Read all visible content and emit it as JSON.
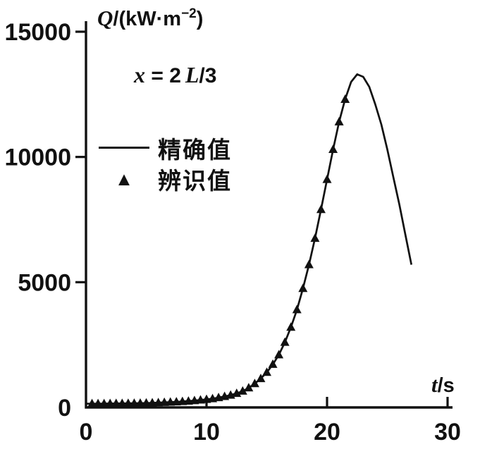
{
  "figure": {
    "ink": "#111111",
    "y_axis_title": {
      "sym": "Q",
      "mid": "/(kW·m",
      "sup": "−2",
      "close": ")"
    },
    "x_axis_title": {
      "sym": "t",
      "rest": "/s"
    },
    "annotation": {
      "sym1": "x",
      "mid": " = 2",
      "sym2": "L",
      "rest": "/3"
    },
    "legend": {
      "exact": "精确值",
      "identified": "辨识值",
      "triangle_glyph": "▲"
    }
  },
  "chart_data": {
    "type": "line",
    "title": "",
    "xlabel": "t/s",
    "ylabel": "Q/(kW·m⁻²)",
    "annotation": "x = 2L/3",
    "xlim": [
      0,
      30
    ],
    "ylim": [
      0,
      15000
    ],
    "x_ticks": [
      0,
      10,
      20,
      30
    ],
    "y_ticks": [
      0,
      5000,
      10000,
      15000
    ],
    "grid": false,
    "legend_position": "upper-left-inside",
    "series": [
      {
        "name": "精确值",
        "type": "line",
        "x": [
          0,
          1,
          2,
          3,
          4,
          5,
          6,
          7,
          8,
          9,
          10,
          10.5,
          11,
          11.5,
          12,
          12.5,
          13,
          13.5,
          14,
          14.5,
          15,
          15.5,
          16,
          16.5,
          17,
          17.5,
          18,
          18.5,
          19,
          19.5,
          20,
          20.5,
          21,
          21.5,
          22,
          22.5,
          23,
          23.5,
          24,
          24.5,
          25,
          25.5,
          26,
          26.5,
          27
        ],
        "y": [
          150,
          150,
          155,
          160,
          165,
          175,
          190,
          210,
          235,
          270,
          320,
          350,
          390,
          435,
          490,
          560,
          650,
          780,
          950,
          1150,
          1400,
          1720,
          2100,
          2600,
          3200,
          3900,
          4750,
          5700,
          6750,
          7900,
          9100,
          10300,
          11400,
          12300,
          13000,
          13300,
          13200,
          12800,
          12100,
          11300,
          10300,
          9200,
          8100,
          6900,
          5700
        ]
      },
      {
        "name": "辨识值",
        "type": "scatter",
        "marker": "triangle",
        "x": [
          0.5,
          1,
          1.5,
          2,
          2.5,
          3,
          3.5,
          4,
          4.5,
          5,
          5.5,
          6,
          6.5,
          7,
          7.5,
          8,
          8.5,
          9,
          9.5,
          10,
          10.5,
          11,
          11.5,
          12,
          12.5,
          13,
          13.5,
          14,
          14.5,
          15,
          15.5,
          16,
          16.5,
          17,
          17.5,
          18,
          18.5,
          19,
          19.5,
          20,
          20.5,
          21,
          21.5
        ],
        "y": [
          150,
          150,
          152,
          155,
          158,
          160,
          162,
          165,
          170,
          175,
          182,
          190,
          200,
          210,
          222,
          235,
          250,
          270,
          295,
          320,
          350,
          390,
          435,
          490,
          560,
          650,
          780,
          950,
          1150,
          1400,
          1720,
          2100,
          2600,
          3200,
          3900,
          4750,
          5700,
          6750,
          7900,
          9100,
          10300,
          11400,
          12300
        ]
      }
    ]
  }
}
